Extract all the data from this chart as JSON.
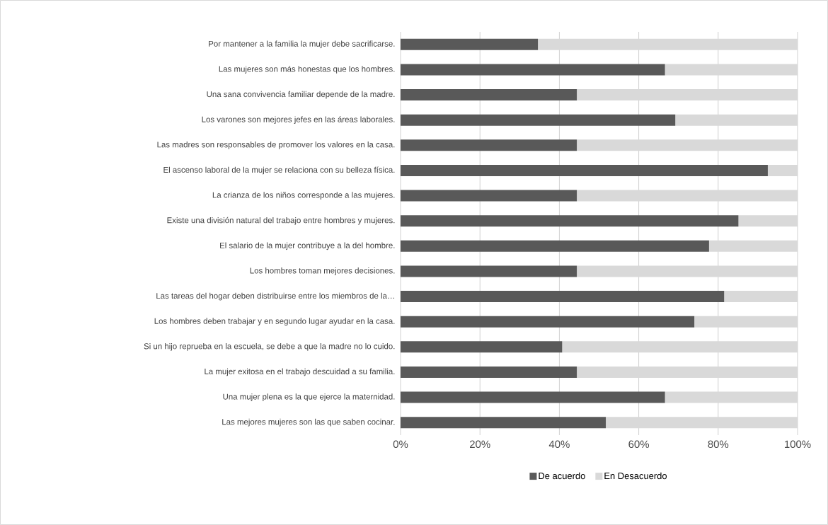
{
  "chart_data": {
    "type": "bar",
    "orientation": "horizontal",
    "stacked": true,
    "categories": [
      "Por mantener a la familia la mujer debe sacrificarse.",
      "Las mujeres son más honestas que los hombres.",
      "Una sana convivencia familiar depende de la madre.",
      "Los varones son mejores jefes en las áreas laborales.",
      "Las madres son responsables de promover los valores en la casa.",
      "El ascenso laboral de la mujer se relaciona con su belleza física.",
      "La crianza de los niños corresponde a las mujeres.",
      "Existe una división natural del trabajo entre hombres y mujeres.",
      "El salario de la mujer contribuye a la del hombre.",
      "Los hombres toman mejores decisiones.",
      "Las tareas del hogar deben distribuirse entre los miembros de la…",
      "Los hombres deben trabajar y en segundo lugar ayudar en la casa.",
      "Si un hijo reprueba en la escuela, se debe a que la madre no lo cuido.",
      "La mujer exitosa en el trabajo descuidad a su familia.",
      "Una mujer plena es la que ejerce la maternidad.",
      "Las mejores mujeres son las que saben cocinar."
    ],
    "series": [
      {
        "name": "De acuerdo",
        "color": "#595959",
        "values": [
          34.6,
          66.6,
          44.4,
          69.2,
          44.4,
          92.5,
          44.4,
          85.1,
          77.7,
          44.4,
          81.5,
          74.0,
          40.7,
          44.4,
          66.6,
          51.7
        ]
      },
      {
        "name": "En Desacuerdo",
        "color": "#d9d9d9",
        "values": [
          65.4,
          33.4,
          55.6,
          30.8,
          55.6,
          7.5,
          55.6,
          14.9,
          22.3,
          55.6,
          18.5,
          26.0,
          59.3,
          55.6,
          33.4,
          48.3
        ]
      }
    ],
    "xlim": [
      0,
      100
    ],
    "xticks": [
      {
        "value": 0,
        "label": "0%"
      },
      {
        "value": 20,
        "label": "20%"
      },
      {
        "value": 40,
        "label": "40%"
      },
      {
        "value": 60,
        "label": "60%"
      },
      {
        "value": 80,
        "label": "80%"
      },
      {
        "value": 100,
        "label": "100%"
      }
    ],
    "grid": "x",
    "legend": "bottom"
  }
}
